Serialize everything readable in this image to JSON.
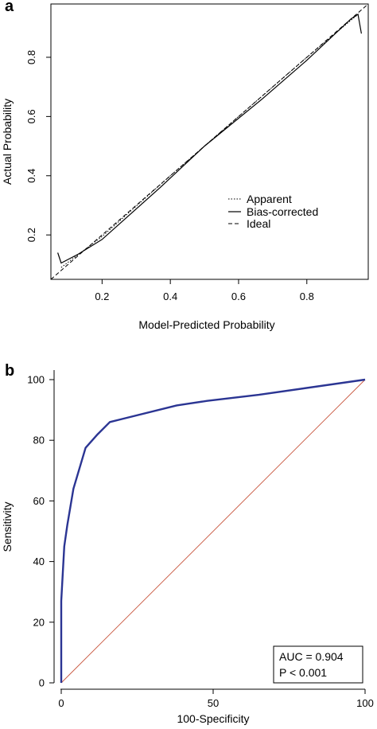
{
  "chart_data": [
    {
      "panel": "a",
      "type": "line",
      "xlabel": "Model-Predicted Probability",
      "ylabel": "Actual Probability",
      "xlim": [
        0.05,
        0.98
      ],
      "ylim": [
        0.05,
        0.98
      ],
      "xticks": [
        0.2,
        0.4,
        0.6,
        0.8
      ],
      "yticks": [
        0.2,
        0.4,
        0.6,
        0.8
      ],
      "grid": false,
      "legend_position": "bottom-right",
      "series": [
        {
          "name": "Apparent",
          "style": "dotted",
          "x": [
            0.08,
            0.2,
            0.4,
            0.6,
            0.8,
            0.95
          ],
          "y": [
            0.09,
            0.195,
            0.4,
            0.6,
            0.8,
            0.945
          ]
        },
        {
          "name": "Bias-corrected",
          "style": "solid",
          "x": [
            0.07,
            0.08,
            0.13,
            0.2,
            0.37,
            0.5,
            0.67,
            0.8,
            0.93,
            0.95,
            0.96
          ],
          "y": [
            0.14,
            0.105,
            0.135,
            0.185,
            0.36,
            0.5,
            0.66,
            0.79,
            0.93,
            0.945,
            0.88
          ]
        },
        {
          "name": "Ideal",
          "style": "dashed",
          "x": [
            0.05,
            0.98
          ],
          "y": [
            0.05,
            0.98
          ]
        }
      ]
    },
    {
      "panel": "b",
      "type": "line",
      "xlabel": "100-Specificity",
      "ylabel": "Sensitivity",
      "xlim": [
        -2,
        100
      ],
      "ylim": [
        -2,
        102
      ],
      "xticks": [
        0,
        50,
        100
      ],
      "yticks": [
        0,
        20,
        40,
        60,
        80,
        100
      ],
      "grid": false,
      "annotation": [
        "AUC = 0.904",
        "P < 0.001"
      ],
      "series": [
        {
          "style": "roc",
          "color": "#2b3593",
          "x": [
            0,
            0,
            1,
            2,
            4,
            8,
            12,
            16,
            20,
            38,
            48,
            65,
            100
          ],
          "y": [
            0,
            27,
            45,
            52,
            64,
            77.5,
            82,
            86,
            87,
            91.5,
            93,
            95,
            100
          ]
        },
        {
          "style": "reference",
          "color": "#c8553d",
          "x": [
            0,
            100
          ],
          "y": [
            0,
            100
          ]
        }
      ]
    }
  ]
}
